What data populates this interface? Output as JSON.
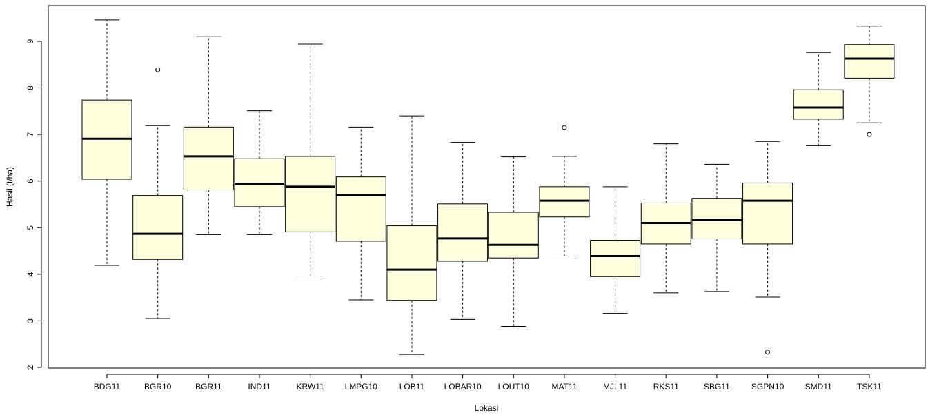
{
  "chart_data": {
    "type": "boxplot",
    "title": "",
    "xlabel": "Lokasi",
    "ylabel": "Hasil (t/ha)",
    "ylim": [
      2,
      9.6
    ],
    "yticks": [
      "2",
      "3",
      "4",
      "5",
      "6",
      "7",
      "8",
      "9"
    ],
    "box_fill": "#ffffe0",
    "categories": [
      "BDG11",
      "BGR10",
      "BGR11",
      "IND11",
      "KRW11",
      "LMPG10",
      "LOB11",
      "LOBAR10",
      "LOUT10",
      "MAT11",
      "MJL11",
      "RKS11",
      "SBG11",
      "SGPN10",
      "SMD11",
      "TSK11"
    ],
    "boxes": [
      {
        "min": 4.19,
        "q1": 6.04,
        "median": 6.91,
        "q3": 7.74,
        "max": 9.46,
        "outliers": []
      },
      {
        "min": 3.05,
        "q1": 4.32,
        "median": 4.87,
        "q3": 5.69,
        "max": 7.19,
        "outliers": [
          8.39
        ]
      },
      {
        "min": 4.85,
        "q1": 5.81,
        "median": 6.53,
        "q3": 7.16,
        "max": 9.1,
        "outliers": []
      },
      {
        "min": 4.85,
        "q1": 5.45,
        "median": 5.94,
        "q3": 6.48,
        "max": 7.51,
        "outliers": []
      },
      {
        "min": 3.96,
        "q1": 4.91,
        "median": 5.88,
        "q3": 6.53,
        "max": 8.94,
        "outliers": []
      },
      {
        "min": 3.45,
        "q1": 4.71,
        "median": 5.7,
        "q3": 6.09,
        "max": 7.16,
        "outliers": []
      },
      {
        "min": 2.28,
        "q1": 3.44,
        "median": 4.1,
        "q3": 5.04,
        "max": 7.4,
        "outliers": []
      },
      {
        "min": 3.03,
        "q1": 4.28,
        "median": 4.77,
        "q3": 5.51,
        "max": 6.83,
        "outliers": []
      },
      {
        "min": 2.88,
        "q1": 4.35,
        "median": 4.63,
        "q3": 5.33,
        "max": 6.52,
        "outliers": []
      },
      {
        "min": 4.33,
        "q1": 5.23,
        "median": 5.58,
        "q3": 5.88,
        "max": 6.53,
        "outliers": [
          7.15
        ]
      },
      {
        "min": 3.16,
        "q1": 3.95,
        "median": 4.39,
        "q3": 4.73,
        "max": 5.88,
        "outliers": []
      },
      {
        "min": 3.6,
        "q1": 4.65,
        "median": 5.1,
        "q3": 5.53,
        "max": 6.8,
        "outliers": []
      },
      {
        "min": 3.63,
        "q1": 4.76,
        "median": 5.16,
        "q3": 5.63,
        "max": 6.36,
        "outliers": []
      },
      {
        "min": 3.51,
        "q1": 4.65,
        "median": 5.58,
        "q3": 5.96,
        "max": 6.85,
        "outliers": [
          2.33
        ]
      },
      {
        "min": 6.76,
        "q1": 7.33,
        "median": 7.58,
        "q3": 7.96,
        "max": 8.76,
        "outliers": []
      },
      {
        "min": 7.25,
        "q1": 8.21,
        "median": 8.63,
        "q3": 8.93,
        "max": 9.33,
        "outliers": [
          7.0
        ]
      }
    ]
  }
}
